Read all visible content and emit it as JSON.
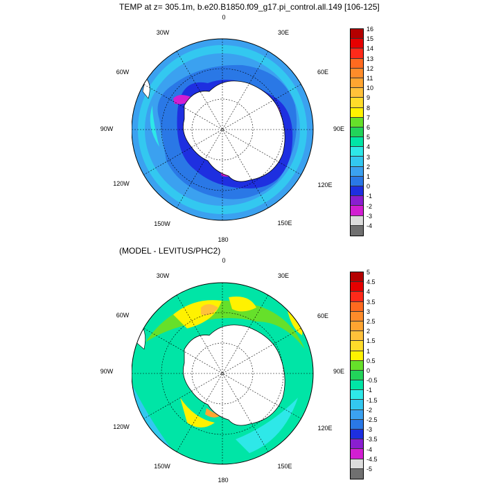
{
  "panel1": {
    "title": "TEMP at z= 305.1m, b.e20.B1850.f09_g17.pi_control.all.149 [106-125]",
    "longitude_labels": [
      "0",
      "30E",
      "60E",
      "90E",
      "120E",
      "150E",
      "180",
      "150W",
      "120W",
      "90W",
      "60W",
      "30W"
    ],
    "colorbar": {
      "labels": [
        "16",
        "15",
        "14",
        "13",
        "12",
        "11",
        "10",
        "9",
        "8",
        "7",
        "6",
        "5",
        "4",
        "3",
        "2",
        "1",
        "0",
        "-1",
        "-2",
        "-3",
        "-4"
      ],
      "colors": [
        "#b40000",
        "#e60000",
        "#ff2a1a",
        "#ff6a1f",
        "#ff8c2a",
        "#ffa531",
        "#ffc13a",
        "#ffdc2a",
        "#fff200",
        "#66e02a",
        "#22d35a",
        "#00e5a6",
        "#2ee8e8",
        "#33c8f0",
        "#3ba1f0",
        "#2a78e6",
        "#1e2fe0",
        "#8a1ed0",
        "#d21ed2",
        "#dcdcdc",
        "#707070"
      ]
    }
  },
  "panel2": {
    "title": "(MODEL - LEVITUS/PHC2)",
    "longitude_labels": [
      "0",
      "30E",
      "60E",
      "90E",
      "120E",
      "150E",
      "180",
      "150W",
      "120W",
      "90W",
      "60W",
      "30W"
    ],
    "colorbar": {
      "labels": [
        "5",
        "4.5",
        "4",
        "3.5",
        "3",
        "2.5",
        "2",
        "1.5",
        "1",
        "0.5",
        "0",
        "-0.5",
        "-1",
        "-1.5",
        "-2",
        "-2.5",
        "-3",
        "-3.5",
        "-4",
        "-4.5",
        "-5"
      ],
      "colors": [
        "#b40000",
        "#e60000",
        "#ff2a1a",
        "#ff6a1f",
        "#ff8c2a",
        "#ffa531",
        "#ffc13a",
        "#ffdc2a",
        "#fff200",
        "#66e02a",
        "#22d35a",
        "#00e5a6",
        "#2ee8e8",
        "#33c8f0",
        "#3ba1f0",
        "#2a78e6",
        "#1e2fe0",
        "#8a1ed0",
        "#d21ed2",
        "#dcdcdc",
        "#707070"
      ]
    }
  }
}
